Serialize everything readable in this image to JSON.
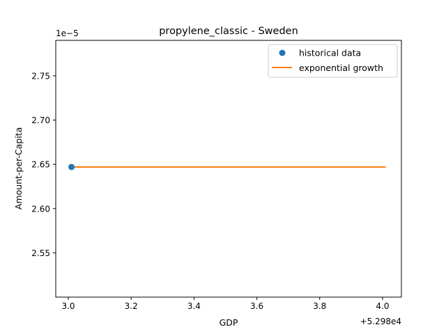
{
  "chart_data": {
    "type": "line",
    "title": "propylene_classic - Sweden",
    "xlabel": "GDP",
    "ylabel": "Amount-per-Capita",
    "x_offset_label": "+5.298e4",
    "y_scale_label": "1e−5",
    "xlim": [
      2.96,
      4.06
    ],
    "ylim": [
      2.5,
      2.79
    ],
    "x_ticks": [
      3.0,
      3.2,
      3.4,
      3.6,
      3.8,
      4.0
    ],
    "x_tick_labels": [
      "3.0",
      "3.2",
      "3.4",
      "3.6",
      "3.8",
      "4.0"
    ],
    "y_ticks": [
      2.55,
      2.6,
      2.65,
      2.7,
      2.75
    ],
    "y_tick_labels": [
      "2.55",
      "2.60",
      "2.65",
      "2.70",
      "2.75"
    ],
    "series": [
      {
        "name": "historical data",
        "kind": "scatter",
        "color": "#1f77b4",
        "x": [
          3.01
        ],
        "y": [
          2.647
        ]
      },
      {
        "name": "exponential growth",
        "kind": "line",
        "color": "#ff7f0e",
        "x": [
          3.01,
          4.01
        ],
        "y": [
          2.647,
          2.647
        ]
      }
    ],
    "legend": {
      "position": "top-right",
      "entries": [
        "historical data",
        "exponential growth"
      ]
    }
  }
}
